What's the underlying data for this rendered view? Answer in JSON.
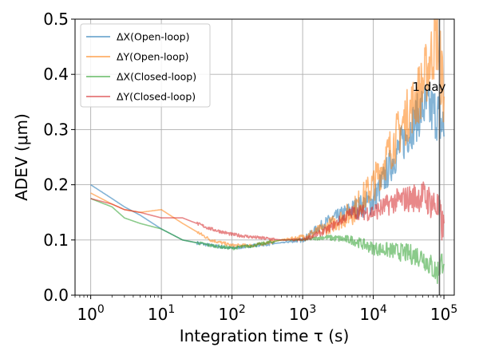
{
  "chart_data": {
    "type": "line",
    "xscale": "log",
    "xlabel": "Integration time τ (s)",
    "ylabel": "ADEV (μm)",
    "xlim": [
      0.6,
      140000
    ],
    "ylim": [
      0,
      0.5
    ],
    "grid": true,
    "legend_position": "upper-left",
    "y_ticks": [
      "0.0",
      "0.1",
      "0.2",
      "0.3",
      "0.4",
      "0.5"
    ],
    "x_ticks": [
      {
        "base": "10",
        "exp": "0"
      },
      {
        "base": "10",
        "exp": "1"
      },
      {
        "base": "10",
        "exp": "2"
      },
      {
        "base": "10",
        "exp": "3"
      },
      {
        "base": "10",
        "exp": "4"
      },
      {
        "base": "10",
        "exp": "5"
      }
    ],
    "vline": {
      "x": 86400,
      "label": "1 day",
      "color": "#555555"
    },
    "series": [
      {
        "name": "ΔX(Open-loop)",
        "color": "#1f77b4",
        "x": [
          1,
          2,
          3,
          5,
          10,
          20,
          50,
          100,
          200,
          500,
          1000,
          2000,
          5000,
          10000,
          20000,
          50000,
          80000,
          100000
        ],
        "y": [
          0.2,
          0.175,
          0.16,
          0.145,
          0.12,
          0.1,
          0.09,
          0.085,
          0.09,
          0.095,
          0.1,
          0.13,
          0.155,
          0.17,
          0.25,
          0.34,
          0.33,
          0.3
        ]
      },
      {
        "name": "ΔY(Open-loop)",
        "color": "#ff7f0e",
        "x": [
          1,
          2,
          3,
          5,
          10,
          20,
          50,
          100,
          200,
          500,
          1000,
          2000,
          5000,
          10000,
          20000,
          50000,
          80000,
          100000
        ],
        "y": [
          0.185,
          0.165,
          0.155,
          0.15,
          0.155,
          0.13,
          0.1,
          0.09,
          0.09,
          0.1,
          0.105,
          0.12,
          0.15,
          0.2,
          0.28,
          0.38,
          0.47,
          0.36
        ]
      },
      {
        "name": "ΔX(Closed-loop)",
        "color": "#2ca02c",
        "x": [
          1,
          2,
          3,
          5,
          10,
          20,
          50,
          100,
          200,
          500,
          1000,
          2000,
          5000,
          10000,
          20000,
          50000,
          80000,
          100000
        ],
        "y": [
          0.175,
          0.16,
          0.14,
          0.13,
          0.12,
          0.1,
          0.09,
          0.085,
          0.09,
          0.1,
          0.1,
          0.105,
          0.1,
          0.085,
          0.08,
          0.07,
          0.04,
          0.07
        ]
      },
      {
        "name": "ΔY(Closed-loop)",
        "color": "#d62728",
        "x": [
          1,
          2,
          3,
          5,
          10,
          20,
          50,
          100,
          200,
          500,
          1000,
          2000,
          5000,
          10000,
          20000,
          50000,
          80000,
          100000
        ],
        "y": [
          0.175,
          0.165,
          0.155,
          0.15,
          0.14,
          0.14,
          0.12,
          0.11,
          0.105,
          0.1,
          0.1,
          0.115,
          0.15,
          0.15,
          0.17,
          0.18,
          0.16,
          0.115
        ]
      }
    ]
  }
}
